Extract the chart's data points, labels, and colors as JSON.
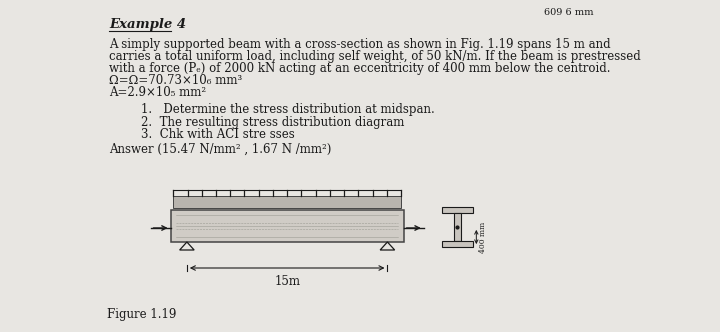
{
  "page_number": "609 6 mm",
  "title": "Example 4",
  "body_lines": [
    "A simply supported beam with a cross-section as shown in Fig. 1.19 spans 15 m and",
    "carries a total uniform load, including self weight, of 50 kN/m. If the beam is prestressed",
    "with a force (Pₑ) of 2000 kN acting at an eccentricity of 400 mm below the centroid.",
    "Ω=Ω=70.73×10₆ mm³",
    "A=2.9×10₅ mm²"
  ],
  "items": [
    "1.   Determine the stress distribution at midspan.",
    "2.  The resulting stress distribution diagram",
    "3.  Chk with ACI stre sses"
  ],
  "answer": "Answer (15.47 N/mm² , 1.67 N /mm²)",
  "figure_label": "Figure 1.19",
  "span_label": "15m",
  "eccentricity_label": "400 mm",
  "bg_color": "#e8e6e2",
  "text_color": "#1a1a1a",
  "beam_fill": "#d0ccc6",
  "beam_outline": "#444444",
  "udl_fill": "#b8b4ae",
  "i_section_fill": "#c8c4be"
}
